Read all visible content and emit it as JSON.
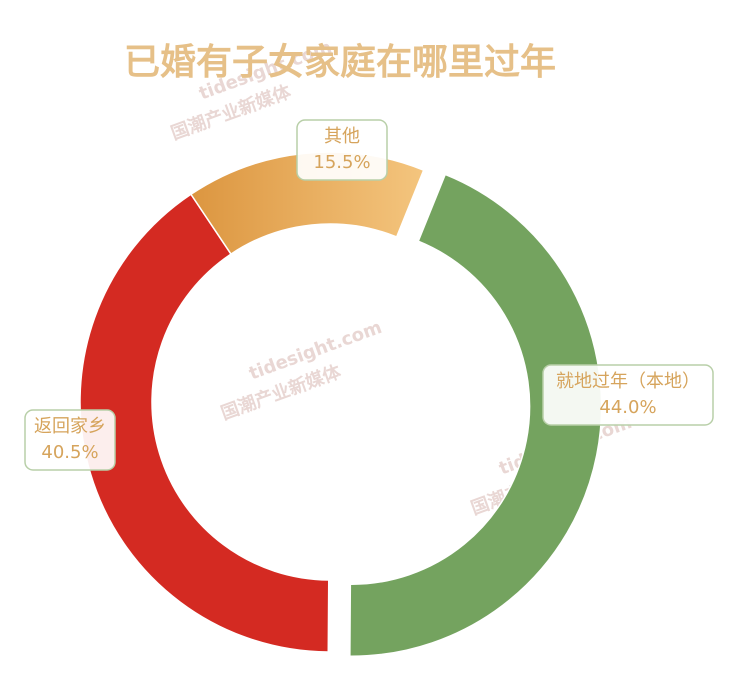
{
  "chart_data": {
    "type": "donut",
    "title": "已婚有子女家庭在哪里过年",
    "categories": [
      "就地过年（本地）",
      "返回家乡",
      "其他"
    ],
    "values": [
      44.0,
      40.5,
      15.5
    ],
    "value_labels": [
      "44.0%",
      "40.5%",
      "15.5%"
    ],
    "colors": [
      "#74a35f",
      "#d42a22",
      "#f0b968"
    ]
  },
  "watermarks": [
    "tidesight.com",
    "国潮产业新媒体"
  ]
}
